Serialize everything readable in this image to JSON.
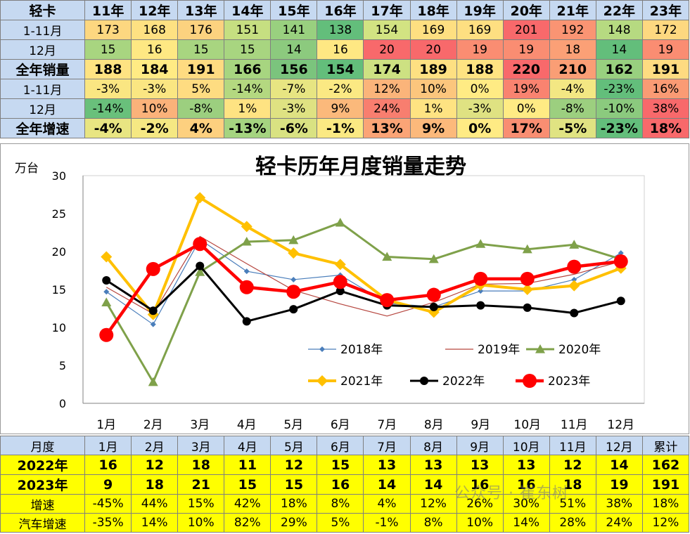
{
  "top_table": {
    "header": [
      "轻卡",
      "11年",
      "12年",
      "13年",
      "14年",
      "15年",
      "16年",
      "17年",
      "18年",
      "19年",
      "20年",
      "21年",
      "22年",
      "23年"
    ],
    "rows": [
      {
        "label": "1-11月",
        "style": "normal",
        "cells": [
          {
            "v": "173",
            "c": "#fdd780"
          },
          {
            "v": "168",
            "c": "#fee182"
          },
          {
            "v": "176",
            "c": "#fcd27f"
          },
          {
            "v": "151",
            "c": "#c6df81"
          },
          {
            "v": "141",
            "c": "#99d07f"
          },
          {
            "v": "138",
            "c": "#63be7b"
          },
          {
            "v": "154",
            "c": "#d2e382"
          },
          {
            "v": "169",
            "c": "#fedf81"
          },
          {
            "v": "169",
            "c": "#fedf81"
          },
          {
            "v": "201",
            "c": "#f8696b"
          },
          {
            "v": "192",
            "c": "#fa9473"
          },
          {
            "v": "148",
            "c": "#b6da81"
          },
          {
            "v": "172",
            "c": "#fdd880"
          }
        ]
      },
      {
        "label": "12月",
        "style": "normal",
        "cells": [
          {
            "v": "15",
            "c": "#a8d580"
          },
          {
            "v": "16",
            "c": "#fee883"
          },
          {
            "v": "15",
            "c": "#a8d580"
          },
          {
            "v": "15",
            "c": "#a8d580"
          },
          {
            "v": "14",
            "c": "#8cca7e"
          },
          {
            "v": "16",
            "c": "#fee883"
          },
          {
            "v": "20",
            "c": "#f8696b"
          },
          {
            "v": "20",
            "c": "#f8696b"
          },
          {
            "v": "19",
            "c": "#fa8d72"
          },
          {
            "v": "19",
            "c": "#fa8d72"
          },
          {
            "v": "18",
            "c": "#fba076"
          },
          {
            "v": "14",
            "c": "#63be7b"
          },
          {
            "v": "19",
            "c": "#fa8d72"
          }
        ]
      },
      {
        "label": "全年销量",
        "style": "bold",
        "cells": [
          {
            "v": "188",
            "c": "#fee382"
          },
          {
            "v": "184",
            "c": "#ffeb84"
          },
          {
            "v": "191",
            "c": "#fedb81"
          },
          {
            "v": "166",
            "c": "#a7d580"
          },
          {
            "v": "156",
            "c": "#7bc47d"
          },
          {
            "v": "154",
            "c": "#63be7b"
          },
          {
            "v": "174",
            "c": "#cde182"
          },
          {
            "v": "189",
            "c": "#fee082"
          },
          {
            "v": "188",
            "c": "#fee382"
          },
          {
            "v": "220",
            "c": "#f8696b"
          },
          {
            "v": "210",
            "c": "#fa9e75"
          },
          {
            "v": "162",
            "c": "#98d07f"
          },
          {
            "v": "191",
            "c": "#fedb81"
          }
        ]
      },
      {
        "label": "1-11月",
        "style": "small",
        "cells": [
          {
            "v": "-3%",
            "c": "#fae682"
          },
          {
            "v": "-3%",
            "c": "#fae682"
          },
          {
            "v": "5%",
            "c": "#fedc81"
          },
          {
            "v": "-14%",
            "c": "#b4d880"
          },
          {
            "v": "-7%",
            "c": "#e7e582"
          },
          {
            "v": "-2%",
            "c": "#fbe983"
          },
          {
            "v": "12%",
            "c": "#fbb47a"
          },
          {
            "v": "10%",
            "c": "#fcc67d"
          },
          {
            "v": "0%",
            "c": "#ffeb84"
          },
          {
            "v": "19%",
            "c": "#f98370"
          },
          {
            "v": "-4%",
            "c": "#f3e783"
          },
          {
            "v": "-23%",
            "c": "#63be7b"
          },
          {
            "v": "16%",
            "c": "#fa9b74"
          }
        ]
      },
      {
        "label": "12月",
        "style": "small",
        "cells": [
          {
            "v": "-14%",
            "c": "#69c07b"
          },
          {
            "v": "10%",
            "c": "#fbb27a"
          },
          {
            "v": "-8%",
            "c": "#9ccf7f"
          },
          {
            "v": "1%",
            "c": "#fee382"
          },
          {
            "v": "-3%",
            "c": "#dfe282"
          },
          {
            "v": "9%",
            "c": "#fbb97b"
          },
          {
            "v": "24%",
            "c": "#f87e6f"
          },
          {
            "v": "1%",
            "c": "#fee382"
          },
          {
            "v": "-3%",
            "c": "#dfe282"
          },
          {
            "v": "0%",
            "c": "#ffeb84"
          },
          {
            "v": "-8%",
            "c": "#9ccf7f"
          },
          {
            "v": "-10%",
            "c": "#8bca7e"
          },
          {
            "v": "38%",
            "c": "#f8696b"
          }
        ]
      },
      {
        "label": "全年增速",
        "style": "bold",
        "cells": [
          {
            "v": "-4%",
            "c": "#e8e582"
          },
          {
            "v": "-2%",
            "c": "#f5e883"
          },
          {
            "v": "4%",
            "c": "#fdd07f"
          },
          {
            "v": "-13%",
            "c": "#a5d480"
          },
          {
            "v": "-6%",
            "c": "#d9e282"
          },
          {
            "v": "-1%",
            "c": "#fbe983"
          },
          {
            "v": "13%",
            "c": "#fba476"
          },
          {
            "v": "9%",
            "c": "#fcb97b"
          },
          {
            "v": "0%",
            "c": "#ffeb84"
          },
          {
            "v": "17%",
            "c": "#f98e72"
          },
          {
            "v": "-5%",
            "c": "#e0e382"
          },
          {
            "v": "-23%",
            "c": "#63be7b"
          },
          {
            "v": "18%",
            "c": "#f8696b"
          }
        ]
      }
    ]
  },
  "chart_data": {
    "type": "line",
    "title": "轻卡历年月度销量走势",
    "ylabel": "万台",
    "ylim": [
      0,
      30
    ],
    "yticks": [
      "0",
      "5",
      "10",
      "15",
      "20",
      "25",
      "30"
    ],
    "categories": [
      "1月",
      "2月",
      "3月",
      "4月",
      "5月",
      "6月",
      "7月",
      "8月",
      "9月",
      "10月",
      "11月",
      "12月"
    ],
    "series": [
      {
        "name": "2018年",
        "color": "#4a7ebb",
        "marker": "diamond",
        "width": 1.2,
        "msize": 4,
        "values": [
          14.7,
          10.4,
          21.6,
          17.4,
          16.3,
          16.9,
          13.2,
          12.7,
          14.8,
          14.8,
          16.3,
          19.8
        ]
      },
      {
        "name": "2019年",
        "color": "#b6463f",
        "marker": "none",
        "width": 1.2,
        "msize": 0,
        "values": [
          15.3,
          11.8,
          22.0,
          18.4,
          14.9,
          13.1,
          11.5,
          13.3,
          15.7,
          15.8,
          17.0,
          18.7
        ]
      },
      {
        "name": "2020年",
        "color": "#7fa14a",
        "marker": "triangle",
        "width": 3,
        "msize": 7,
        "values": [
          13.3,
          2.8,
          17.3,
          21.3,
          21.5,
          23.8,
          19.3,
          19.0,
          21.0,
          20.3,
          20.9,
          19.0
        ]
      },
      {
        "name": "2021年",
        "color": "#ffc000",
        "marker": "diamond",
        "width": 4,
        "msize": 8,
        "values": [
          19.3,
          11.7,
          27.1,
          23.3,
          19.8,
          18.3,
          13.6,
          12.0,
          15.6,
          15.0,
          15.5,
          17.8
        ]
      },
      {
        "name": "2022年",
        "color": "#000000",
        "marker": "circle",
        "width": 3,
        "msize": 6,
        "values": [
          16.2,
          12.2,
          18.1,
          10.8,
          12.4,
          14.8,
          12.9,
          12.7,
          12.9,
          12.6,
          11.9,
          13.5
        ]
      },
      {
        "name": "2023年",
        "color": "#ff0000",
        "marker": "circle",
        "width": 4.5,
        "msize": 10,
        "values": [
          9.0,
          17.7,
          21.0,
          15.3,
          14.7,
          16.0,
          13.6,
          14.3,
          16.4,
          16.4,
          18.0,
          18.7
        ]
      }
    ],
    "legend_position": "bottom-right inside",
    "grid": false
  },
  "bottom_table": {
    "header": [
      "月度",
      "1月",
      "2月",
      "3月",
      "4月",
      "5月",
      "6月",
      "7月",
      "8月",
      "9月",
      "10月",
      "11月",
      "12月",
      "累计"
    ],
    "rows": [
      {
        "label": "2022年",
        "style": "bold",
        "cells": [
          "16",
          "12",
          "18",
          "11",
          "12",
          "15",
          "13",
          "13",
          "13",
          "13",
          "12",
          "14",
          "162"
        ]
      },
      {
        "label": "2023年",
        "style": "bold",
        "cells": [
          "9",
          "18",
          "21",
          "15",
          "15",
          "16",
          "14",
          "14",
          "16",
          "16",
          "18",
          "19",
          "191"
        ]
      },
      {
        "label": "增速",
        "style": "normal",
        "cells": [
          "-45%",
          "44%",
          "15%",
          "42%",
          "18%",
          "8%",
          "4%",
          "12%",
          "26%",
          "30%",
          "51%",
          "38%",
          "18%"
        ]
      },
      {
        "label": "汽车增速",
        "style": "normal",
        "cells": [
          "-35%",
          "14%",
          "10%",
          "82%",
          "29%",
          "5%",
          "-1%",
          "8%",
          "10%",
          "14%",
          "28%",
          "24%",
          "12%"
        ]
      }
    ]
  },
  "watermark": "公众号 · 崔东树"
}
